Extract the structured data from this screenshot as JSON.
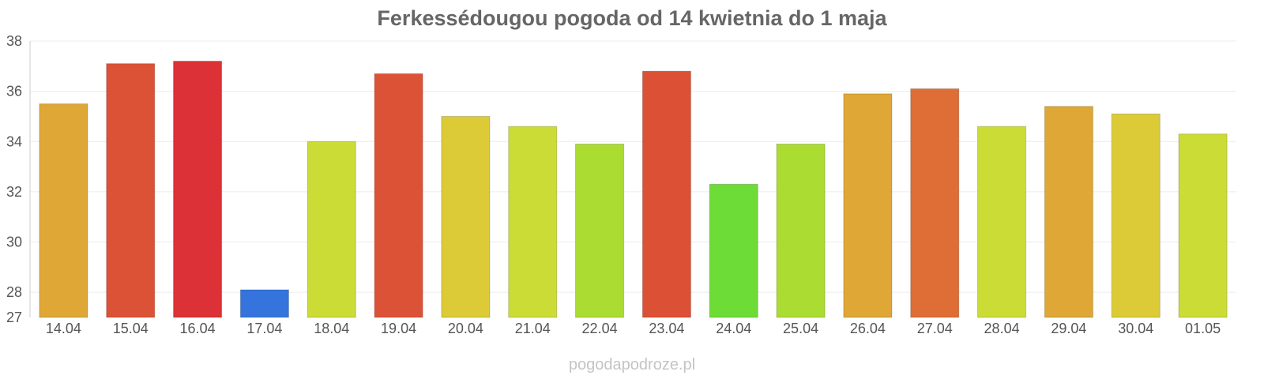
{
  "chart_data": {
    "type": "bar",
    "title": "Ferkessédougou pogoda od 14 kwietnia do 1 maja",
    "xlabel": "",
    "ylabel": "",
    "ylim": [
      27,
      38
    ],
    "yticks": [
      27,
      28,
      30,
      32,
      34,
      36,
      38
    ],
    "grid": true,
    "legend": "none",
    "categories": [
      "14.04",
      "15.04",
      "16.04",
      "17.04",
      "18.04",
      "19.04",
      "20.04",
      "21.04",
      "22.04",
      "23.04",
      "24.04",
      "25.04",
      "26.04",
      "27.04",
      "28.04",
      "29.04",
      "30.04",
      "01.05"
    ],
    "values": [
      35.5,
      37.1,
      37.2,
      28.1,
      34.0,
      36.7,
      35.0,
      34.6,
      33.9,
      36.8,
      32.3,
      33.9,
      35.9,
      36.1,
      34.6,
      35.4,
      35.1,
      34.3
    ],
    "colors": [
      "#dea736",
      "#dc5236",
      "#dc3136",
      "#3574dc",
      "#ccdc36",
      "#dc5236",
      "#dccb36",
      "#ccdc36",
      "#aadc32",
      "#dc5036",
      "#6ddc36",
      "#aadc32",
      "#dea736",
      "#de6e36",
      "#ccdc36",
      "#dea736",
      "#dccb36",
      "#ccdc36"
    ]
  },
  "watermark": "pogodapodroze.pl"
}
